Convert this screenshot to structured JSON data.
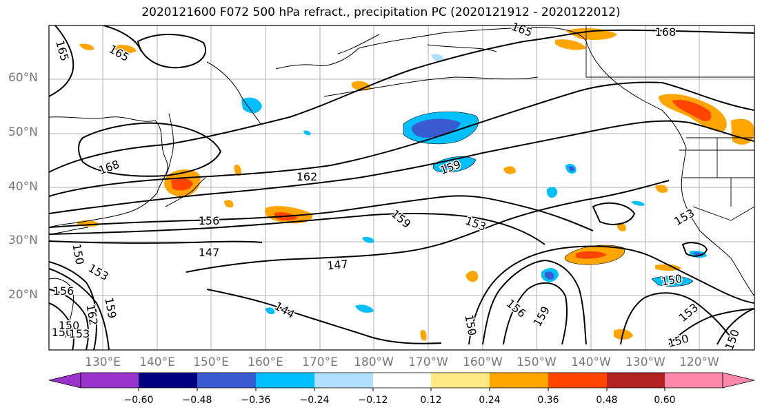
{
  "title": "2020121600 F072 500 hPa refract., precipitation PC (2020121912 - 2020122012)",
  "lat_labels": [
    "60°N",
    "50°N",
    "40°N",
    "30°N",
    "20°N"
  ],
  "lon_labels": [
    "130°E",
    "140°E",
    "150°E",
    "160°E",
    "170°E",
    "180°W",
    "170°W",
    "160°W",
    "150°W",
    "140°W",
    "130°W",
    "120°W"
  ],
  "contour_labels": [
    "165",
    "165",
    "165",
    "168",
    "168",
    "162",
    "159",
    "159",
    "156",
    "153",
    "153",
    "147",
    "147",
    "150",
    "150",
    "150",
    "150",
    "153",
    "156",
    "159",
    "162",
    "156",
    "153",
    "144",
    "150",
    "150",
    "150",
    "153",
    "159"
  ],
  "colorbar": {
    "ticks": [
      "−0.60",
      "−0.48",
      "−0.36",
      "−0.24",
      "−0.12",
      "0.12",
      "0.24",
      "0.36",
      "0.48",
      "0.60"
    ],
    "colors": [
      "#9933cc",
      "#000080",
      "#3a5bd0",
      "#00bfff",
      "#b0e0ff",
      "#ffffff",
      "#ffe985",
      "#ffa500",
      "#ff4500",
      "#b22222",
      "#ff88aa"
    ]
  }
}
